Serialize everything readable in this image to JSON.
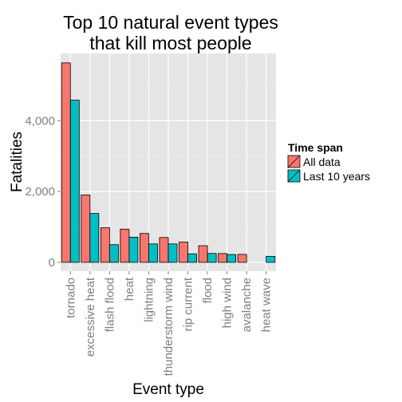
{
  "chart_data": {
    "type": "bar",
    "title_lines": [
      "Top 10 natural event types",
      "that kill most people"
    ],
    "xlabel": "Event type",
    "ylabel": "Fatalities",
    "categories": [
      "tornado",
      "excessive heat",
      "flash flood",
      "heat",
      "lightning",
      "thunderstorm wind",
      "rip current",
      "flood",
      "high wind",
      "avalanche",
      "heat wave"
    ],
    "series": [
      {
        "name": "All data",
        "color": "#F8766D",
        "values": [
          5633,
          1903,
          978,
          937,
          816,
          701,
          572,
          470,
          248,
          224,
          null
        ]
      },
      {
        "name": "Last 10 years",
        "color": "#00BFC4",
        "values": [
          4580,
          1380,
          500,
          710,
          520,
          520,
          240,
          250,
          220,
          null,
          170
        ]
      }
    ],
    "yticks": [
      0,
      2000,
      4000
    ],
    "ytick_labels": [
      "0",
      "2,000",
      "4,000"
    ],
    "ylim": [
      -250,
      5900
    ],
    "legend": {
      "title": "Time span",
      "placement": "right"
    },
    "grid": true
  }
}
